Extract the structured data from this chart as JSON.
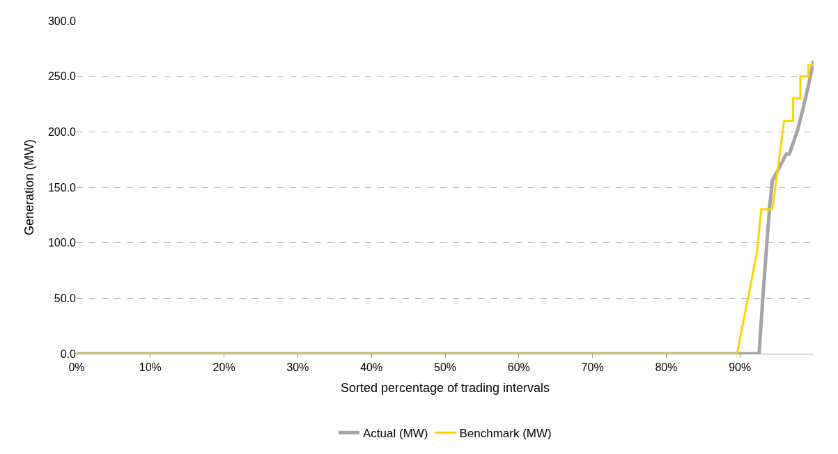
{
  "chart_data": {
    "type": "line",
    "xlabel": "Sorted percentage of trading intervals",
    "ylabel": "Generation (MW)",
    "xlim": [
      0,
      100
    ],
    "xticks": [
      {
        "value": 0,
        "label": "0%"
      },
      {
        "value": 10,
        "label": "10%"
      },
      {
        "value": 20,
        "label": "20%"
      },
      {
        "value": 30,
        "label": "30%"
      },
      {
        "value": 40,
        "label": "40%"
      },
      {
        "value": 50,
        "label": "50%"
      },
      {
        "value": 60,
        "label": "60%"
      },
      {
        "value": 70,
        "label": "70%"
      },
      {
        "value": 80,
        "label": "80%"
      },
      {
        "value": 90,
        "label": "90%"
      }
    ],
    "ylim": [
      0,
      300
    ],
    "yticks": [
      {
        "value": 0,
        "label": "0.0"
      },
      {
        "value": 50,
        "label": "50.0"
      },
      {
        "value": 100,
        "label": "100.0"
      },
      {
        "value": 150,
        "label": "150.0"
      },
      {
        "value": 200,
        "label": "200.0"
      },
      {
        "value": 250,
        "label": "250.0"
      },
      {
        "value": 300,
        "label": "300.0"
      }
    ],
    "grid": "y",
    "legend": "bottom",
    "marker": "none",
    "line_style": "solid",
    "series": [
      {
        "name": "Actual (MW)",
        "color": "#a5a5a5",
        "x": [
          0,
          92.6,
          93.1,
          94.0,
          94.4,
          95.5,
          96.3,
          96.7,
          97.8,
          98.6,
          99.3,
          100
        ],
        "values": [
          0,
          0,
          50,
          130,
          156,
          170,
          180,
          180,
          201,
          222,
          242,
          264
        ]
      },
      {
        "name": "Benchmark (MW)",
        "color": "#ffd200",
        "x": [
          0,
          89.6,
          91.1,
          92.3,
          92.9,
          94.4,
          96.0,
          97.2,
          97.2,
          98.2,
          98.2,
          99.3,
          99.3,
          100
        ],
        "values": [
          0,
          0,
          50,
          91,
          130,
          130,
          210,
          210,
          230,
          230,
          250,
          250,
          260,
          260
        ]
      }
    ]
  }
}
